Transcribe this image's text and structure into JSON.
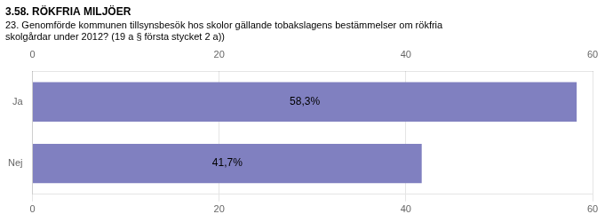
{
  "chart_data": {
    "type": "bar",
    "orientation": "horizontal",
    "title": "3.58. RÖKFRIA MILJÖER",
    "subtitle": "23. Genomförde kommunen tillsynsbesök hos skolor gällande tobakslagens bestämmelser om rökfria\nskolgårdar under 2012? (19 a § första stycket 2 a))",
    "categories": [
      "Ja",
      "Nej"
    ],
    "values": [
      58.3,
      41.7
    ],
    "value_labels": [
      "58,3%",
      "41,7%"
    ],
    "data_labels": true,
    "color": "#8080c0",
    "xlim": [
      0,
      60
    ],
    "xticks": [
      0,
      20,
      40,
      60
    ],
    "grid": true
  }
}
